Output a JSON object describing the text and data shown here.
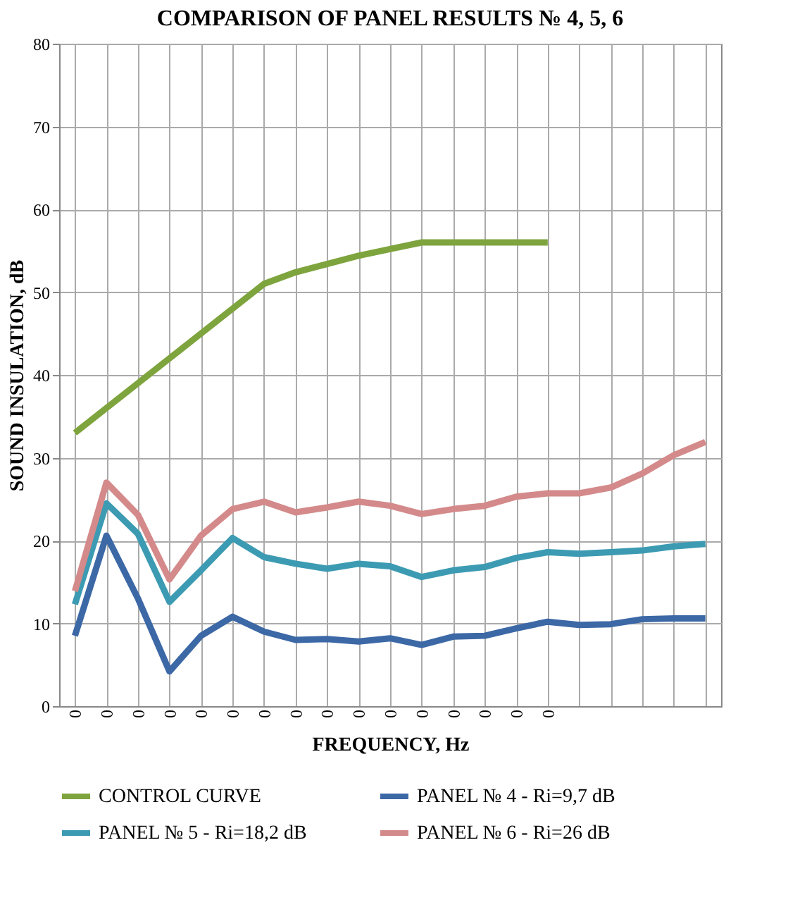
{
  "chart_data": {
    "type": "line",
    "title": "COMPARISON OF PANEL RESULTS № 4, 5, 6",
    "xlabel": "FREQUENCY, Hz",
    "ylabel": "SOUND INSULATION, dB",
    "categories": [
      "0",
      "0",
      "0",
      "0",
      "0",
      "0",
      "0",
      "0",
      "0",
      "0",
      "0",
      "0",
      "0",
      "0",
      "0",
      "0",
      null,
      null,
      null,
      null,
      null
    ],
    "ylim": [
      0,
      80
    ],
    "yticks": [
      0,
      10,
      20,
      30,
      40,
      50,
      60,
      70,
      80
    ],
    "grid": true,
    "legend": "bottom",
    "line_style": "solid",
    "series": [
      {
        "name": "CONTROL CURVE",
        "color": "#7ea43e",
        "values": [
          33,
          36,
          39,
          42,
          45,
          48,
          51,
          52.4,
          53.4,
          54.4,
          55.2,
          56,
          56,
          56,
          56,
          56,
          null,
          null,
          null,
          null,
          null
        ]
      },
      {
        "name": "PANEL № 4 -  Ri=9,7 dB",
        "color": "#3c68a6",
        "values": [
          8.5,
          20.6,
          13,
          4.2,
          8.5,
          10.8,
          9,
          8,
          8.1,
          7.8,
          8.2,
          7.4,
          8.4,
          8.5,
          9.4,
          10.2,
          9.8,
          9.9,
          10.5,
          10.6,
          10.6
        ]
      },
      {
        "name": "PANEL № 5 -  Ri=18,2 dB",
        "color": "#3c9bb2",
        "values": [
          12.3,
          24.5,
          20.8,
          12.6,
          16.4,
          20.3,
          18,
          17.2,
          16.6,
          17.2,
          16.9,
          15.6,
          16.4,
          16.8,
          17.9,
          18.6,
          18.4,
          18.6,
          18.8,
          19.3,
          19.6
        ]
      },
      {
        "name": "PANEL № 6 - Ri=26 dB",
        "color": "#d48a8a",
        "values": [
          13.9,
          27,
          23.1,
          15.3,
          20.6,
          23.8,
          24.7,
          23.4,
          24,
          24.7,
          24.2,
          23.2,
          23.8,
          24.2,
          25.3,
          25.7,
          25.7,
          26.4,
          28.1,
          30.3,
          31.9
        ]
      }
    ]
  }
}
